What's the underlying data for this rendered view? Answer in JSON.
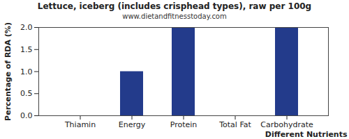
{
  "chart_data": {
    "type": "bar",
    "title": "Lettuce, iceberg (includes crisphead types), raw per 100g",
    "subtitle": "www.dietandfitnesstoday.com",
    "x_label": "Different Nutrients",
    "y_label": "Percentage of RDA (%)",
    "categories": [
      "Thiamin",
      "Energy",
      "Protein",
      "Total Fat",
      "Carbohydrate"
    ],
    "values": [
      0,
      1,
      2,
      0,
      2
    ],
    "color": "#233b8b",
    "ylim": [
      0,
      2
    ],
    "yticks": [
      {
        "value": 0,
        "label": "0.0"
      },
      0.5,
      {
        "value": 1,
        "label": "1.0"
      },
      1.5,
      {
        "value": 2,
        "label": "2.0"
      }
    ],
    "grid": false
  }
}
